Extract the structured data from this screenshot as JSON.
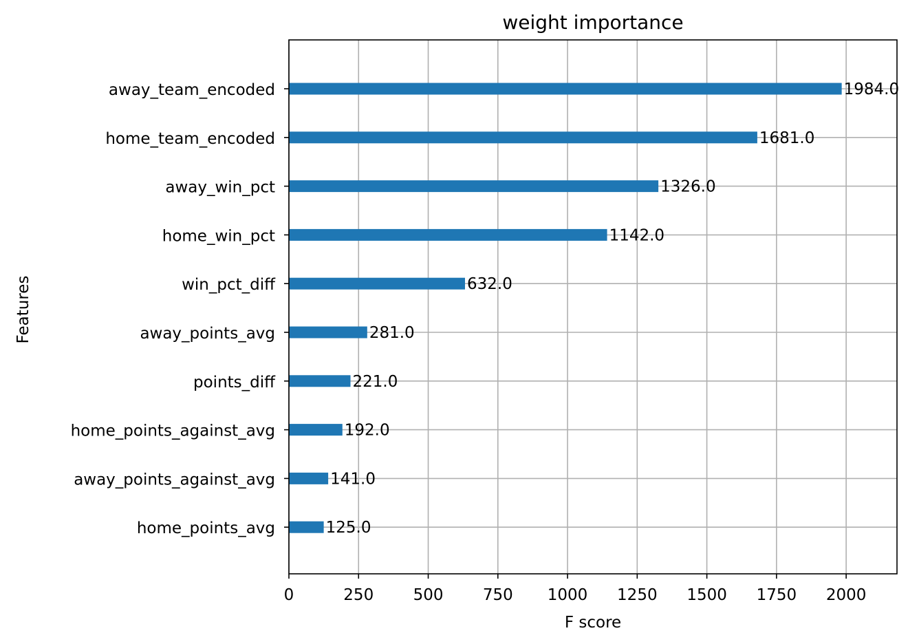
{
  "chart_data": {
    "type": "bar",
    "orientation": "horizontal",
    "title": "weight importance",
    "xlabel": "F score",
    "ylabel": "Features",
    "categories": [
      "away_team_encoded",
      "home_team_encoded",
      "away_win_pct",
      "home_win_pct",
      "win_pct_diff",
      "away_points_avg",
      "points_diff",
      "home_points_against_avg",
      "away_points_against_avg",
      "home_points_avg"
    ],
    "values": [
      1984.0,
      1681.0,
      1326.0,
      1142.0,
      632.0,
      281.0,
      221.0,
      192.0,
      141.0,
      125.0
    ],
    "value_labels": [
      "1984.0",
      "1681.0",
      "1326.0",
      "1142.0",
      "632.0",
      "281.0",
      "221.0",
      "192.0",
      "141.0",
      "125.0"
    ],
    "xlim": [
      0,
      2182.4
    ],
    "xticks": [
      0,
      250,
      500,
      750,
      1000,
      1250,
      1500,
      1750,
      2000
    ],
    "xtick_labels": [
      "0",
      "250",
      "500",
      "750",
      "1000",
      "1250",
      "1500",
      "1750",
      "2000"
    ],
    "grid": true,
    "legend": "none",
    "colors": {
      "bar": "#1f77b4",
      "grid": "#b0b0b0",
      "axis": "#000000"
    }
  }
}
